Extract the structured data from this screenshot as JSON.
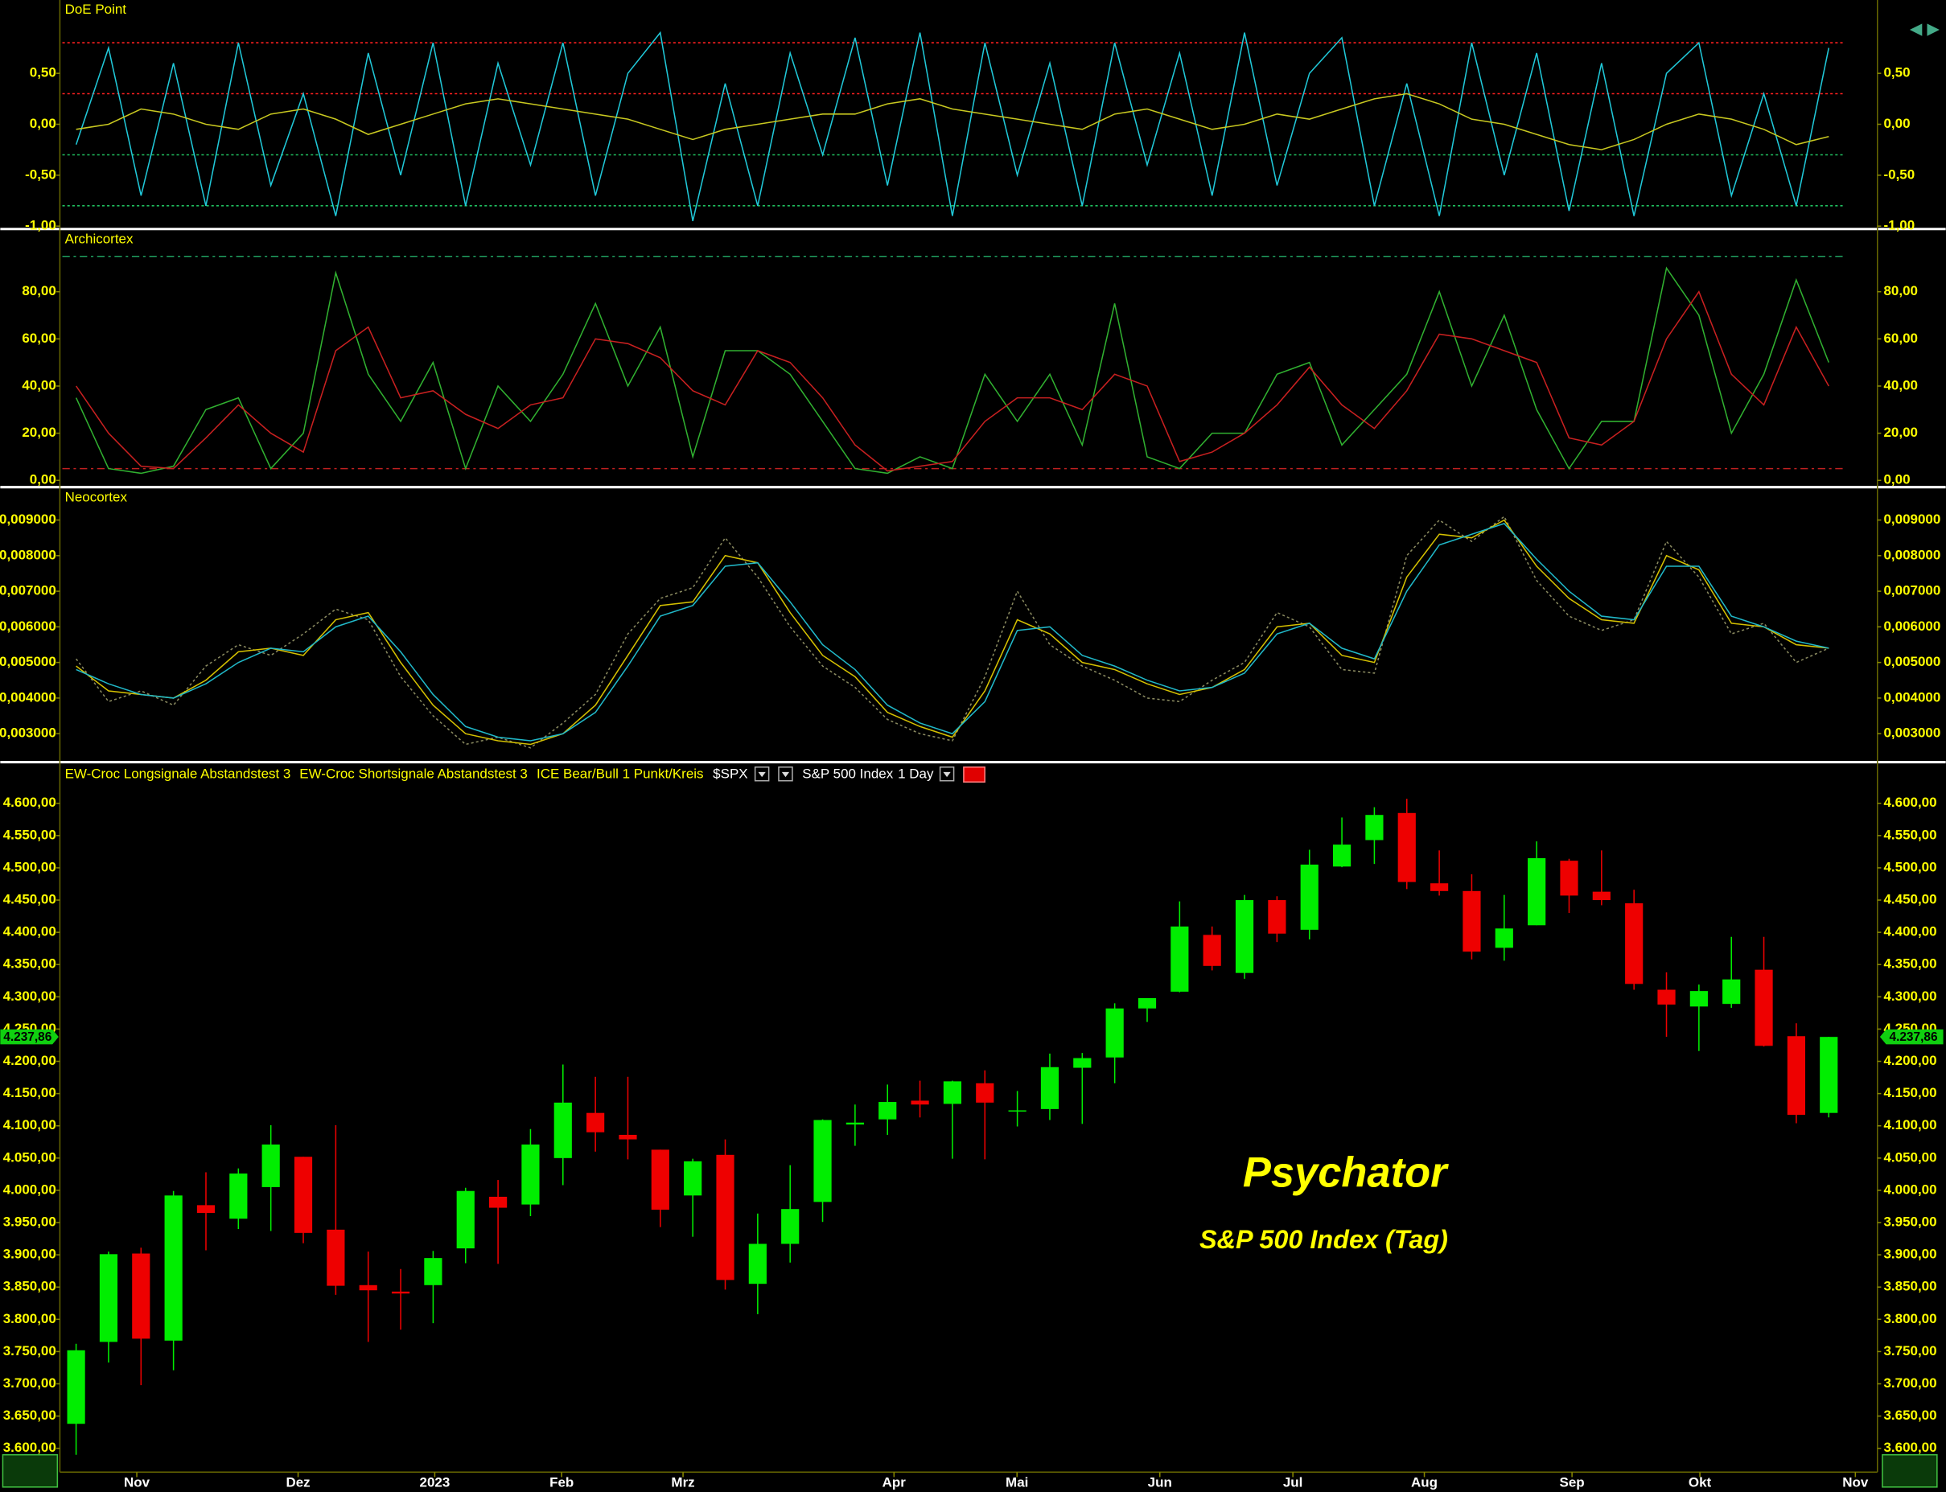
{
  "chart_data": [
    {
      "type": "line",
      "title": "DoE Point",
      "ylim": [
        -1.01,
        1.22
      ],
      "yticks": [
        {
          "value": -1,
          "label": "-1,00"
        },
        {
          "value": -0.5,
          "label": "-0,50"
        },
        {
          "value": 0,
          "label": "0,00"
        },
        {
          "value": 0.5,
          "label": "0,50"
        }
      ],
      "levels": [
        {
          "value": 0.8,
          "color": "#ff2020"
        },
        {
          "value": 0.3,
          "color": "#ff2020"
        },
        {
          "value": -0.3,
          "color": "#20c060"
        },
        {
          "value": -0.8,
          "color": "#20c060"
        }
      ],
      "series": [
        {
          "color": "#20c8d8",
          "values": [
            -0.2,
            0.75,
            -0.7,
            0.6,
            -0.8,
            0.8,
            -0.6,
            0.3,
            -0.9,
            0.7,
            -0.5,
            0.8,
            -0.8,
            0.6,
            -0.4,
            0.8,
            -0.7,
            0.5,
            0.9,
            -0.95,
            0.4,
            -0.8,
            0.7,
            -0.3,
            0.85,
            -0.6,
            0.9,
            -0.9,
            0.8,
            -0.5,
            0.6,
            -0.8,
            0.8,
            -0.4,
            0.7,
            -0.7,
            0.9,
            -0.6,
            0.5,
            0.85,
            -0.8,
            0.4,
            -0.9,
            0.8,
            -0.5,
            0.7,
            -0.85,
            0.6,
            -0.9,
            0.5,
            0.8,
            -0.7,
            0.3,
            -0.8,
            0.75
          ]
        },
        {
          "color": "#c8c820",
          "values": [
            -0.05,
            0.0,
            0.15,
            0.1,
            0.0,
            -0.05,
            0.1,
            0.15,
            0.05,
            -0.1,
            0.0,
            0.1,
            0.2,
            0.25,
            0.2,
            0.15,
            0.1,
            0.05,
            -0.05,
            -0.15,
            -0.05,
            0.0,
            0.05,
            0.1,
            0.1,
            0.2,
            0.25,
            0.15,
            0.1,
            0.05,
            0.0,
            -0.05,
            0.1,
            0.15,
            0.05,
            -0.05,
            0.0,
            0.1,
            0.05,
            0.15,
            0.25,
            0.3,
            0.2,
            0.05,
            0.0,
            -0.1,
            -0.2,
            -0.25,
            -0.15,
            0.0,
            0.1,
            0.05,
            -0.05,
            -0.2,
            -0.12
          ]
        }
      ]
    },
    {
      "type": "line",
      "title": "Archicortex",
      "ylim": [
        -2.1,
        105.8
      ],
      "yticks": [
        {
          "value": 0,
          "label": "0,00"
        },
        {
          "value": 20,
          "label": "20,00"
        },
        {
          "value": 40,
          "label": "40,00"
        },
        {
          "value": 60,
          "label": "60,00"
        },
        {
          "value": 80,
          "label": "80,00"
        }
      ],
      "levels": [
        {
          "value": 95,
          "color": "#20a060"
        },
        {
          "value": 5,
          "color": "#c02020"
        }
      ],
      "series": [
        {
          "color": "#30b030",
          "values": [
            35,
            5,
            3,
            6,
            30,
            35,
            5,
            20,
            88,
            45,
            25,
            50,
            5,
            40,
            25,
            45,
            75,
            40,
            65,
            10,
            55,
            55,
            45,
            25,
            5,
            3,
            10,
            5,
            45,
            25,
            45,
            15,
            75,
            10,
            5,
            20,
            20,
            45,
            50,
            15,
            30,
            45,
            80,
            40,
            70,
            30,
            5,
            25,
            25,
            90,
            70,
            20,
            45,
            85,
            50
          ]
        },
        {
          "color": "#c82020",
          "values": [
            40,
            20,
            6,
            5,
            18,
            32,
            20,
            12,
            55,
            65,
            35,
            38,
            28,
            22,
            32,
            35,
            60,
            58,
            52,
            38,
            32,
            55,
            50,
            35,
            15,
            4,
            6,
            8,
            25,
            35,
            35,
            30,
            45,
            40,
            8,
            12,
            20,
            32,
            48,
            32,
            22,
            38,
            62,
            60,
            55,
            50,
            18,
            15,
            25,
            60,
            80,
            45,
            32,
            65,
            40
          ]
        }
      ]
    },
    {
      "type": "line",
      "title": "Neocortex",
      "ylim": [
        0.00227,
        0.00987
      ],
      "yticks": [
        {
          "value": 0.003,
          "label": "0,003000"
        },
        {
          "value": 0.004,
          "label": "0,004000"
        },
        {
          "value": 0.005,
          "label": "0,005000"
        },
        {
          "value": 0.006,
          "label": "0,006000"
        },
        {
          "value": 0.007,
          "label": "0,007000"
        },
        {
          "value": 0.008,
          "label": "0,008000"
        },
        {
          "value": 0.009,
          "label": "0,009000"
        }
      ],
      "series": [
        {
          "color": "#8a8a60",
          "dash": true,
          "values": [
            0.0051,
            0.0039,
            0.0042,
            0.0038,
            0.0049,
            0.0055,
            0.0052,
            0.0058,
            0.0065,
            0.0062,
            0.0046,
            0.0035,
            0.0027,
            0.0029,
            0.0026,
            0.0033,
            0.0041,
            0.0058,
            0.0068,
            0.0071,
            0.0085,
            0.0074,
            0.006,
            0.0049,
            0.0043,
            0.0034,
            0.003,
            0.0028,
            0.0046,
            0.007,
            0.0055,
            0.0049,
            0.0045,
            0.004,
            0.0039,
            0.0045,
            0.005,
            0.0064,
            0.006,
            0.0048,
            0.0047,
            0.008,
            0.009,
            0.0084,
            0.0091,
            0.0073,
            0.0063,
            0.0059,
            0.0062,
            0.0084,
            0.0074,
            0.0058,
            0.0061,
            0.005,
            0.0054
          ]
        },
        {
          "color": "#d4c000",
          "values": [
            0.0049,
            0.0042,
            0.0041,
            0.004,
            0.0045,
            0.0053,
            0.0054,
            0.0052,
            0.0062,
            0.0064,
            0.005,
            0.0038,
            0.003,
            0.0028,
            0.0027,
            0.003,
            0.0038,
            0.0052,
            0.0066,
            0.0067,
            0.008,
            0.0078,
            0.0064,
            0.0052,
            0.0046,
            0.0036,
            0.0032,
            0.0029,
            0.0042,
            0.0062,
            0.0058,
            0.005,
            0.0048,
            0.0044,
            0.0041,
            0.0043,
            0.0048,
            0.006,
            0.0061,
            0.0052,
            0.005,
            0.0074,
            0.0086,
            0.0085,
            0.009,
            0.0077,
            0.0068,
            0.0062,
            0.0061,
            0.008,
            0.0076,
            0.0061,
            0.006,
            0.0055,
            0.0054
          ]
        },
        {
          "color": "#20b8c8",
          "values": [
            0.0048,
            0.0044,
            0.0041,
            0.004,
            0.0044,
            0.005,
            0.0054,
            0.0053,
            0.006,
            0.0063,
            0.0053,
            0.0041,
            0.0032,
            0.0029,
            0.0028,
            0.003,
            0.0036,
            0.0049,
            0.0063,
            0.0066,
            0.0077,
            0.0078,
            0.0067,
            0.0055,
            0.0048,
            0.0038,
            0.0033,
            0.003,
            0.0039,
            0.0059,
            0.006,
            0.0052,
            0.0049,
            0.0045,
            0.0042,
            0.0043,
            0.0047,
            0.0058,
            0.0061,
            0.0054,
            0.0051,
            0.007,
            0.0083,
            0.0086,
            0.0089,
            0.0079,
            0.007,
            0.0063,
            0.0062,
            0.0077,
            0.0077,
            0.0063,
            0.006,
            0.0056,
            0.0054
          ]
        }
      ]
    },
    {
      "type": "candlestick",
      "title": "S&P 500 Index",
      "symbol": "$SPX",
      "interval": "1 Day",
      "indicators": [
        "EW-Croc Longsignale Abstandstest 3",
        "EW-Croc Shortsignale Abstandstest 3",
        "ICE Bear/Bull 1 Punkt/Kreis"
      ],
      "annotations": [
        "Psychator",
        "S&P 500 Index (Tag)"
      ],
      "up_color": "#00ee00",
      "down_color": "#ee0000",
      "last_price": {
        "value": 4237.86,
        "label": "4.237,86"
      },
      "xlim": [
        -0.5,
        55.5
      ],
      "xticks": [
        {
          "value": 1.87,
          "label": "Nov"
        },
        {
          "value": 6.84,
          "label": "Dez"
        },
        {
          "value": 11.05,
          "label": "2023"
        },
        {
          "value": 14.96,
          "label": "Feb"
        },
        {
          "value": 18.7,
          "label": "Mrz"
        },
        {
          "value": 25.2,
          "label": "Apr"
        },
        {
          "value": 28.99,
          "label": "Mai"
        },
        {
          "value": 33.39,
          "label": "Jun"
        },
        {
          "value": 37.49,
          "label": "Jul"
        },
        {
          "value": 41.54,
          "label": "Aug"
        },
        {
          "value": 46.09,
          "label": "Sep"
        },
        {
          "value": 50.03,
          "label": "Okt"
        },
        {
          "value": 54.82,
          "label": "Nov"
        }
      ],
      "ylim": [
        3565,
        4660
      ],
      "yticks": [
        {
          "value": 3600,
          "label": "3.600,00"
        },
        {
          "value": 3650,
          "label": "3.650,00"
        },
        {
          "value": 3700,
          "label": "3.700,00"
        },
        {
          "value": 3750,
          "label": "3.750,00"
        },
        {
          "value": 3800,
          "label": "3.800,00"
        },
        {
          "value": 3850,
          "label": "3.850,00"
        },
        {
          "value": 3900,
          "label": "3.900,00"
        },
        {
          "value": 3950,
          "label": "3.950,00"
        },
        {
          "value": 4000,
          "label": "4.000,00"
        },
        {
          "value": 4050,
          "label": "4.050,00"
        },
        {
          "value": 4100,
          "label": "4.100,00"
        },
        {
          "value": 4150,
          "label": "4.150,00"
        },
        {
          "value": 4200,
          "label": "4.200,00"
        },
        {
          "value": 4250,
          "label": "4.250,00"
        },
        {
          "value": 4300,
          "label": "4.300,00"
        },
        {
          "value": 4350,
          "label": "4.350,00"
        },
        {
          "value": 4400,
          "label": "4.400,00"
        },
        {
          "value": 4450,
          "label": "4.450,00"
        },
        {
          "value": 4500,
          "label": "4.500,00"
        },
        {
          "value": 4550,
          "label": "4.550,00"
        },
        {
          "value": 4600,
          "label": "4.600,00"
        }
      ],
      "open": [
        3638,
        3765,
        3902,
        3767,
        3977,
        3956,
        4005,
        4052,
        3939,
        3853,
        3843,
        3853,
        3910,
        3990,
        3978,
        4050,
        4120,
        4086,
        4063,
        3992,
        4055,
        3855,
        3917,
        3982,
        4102,
        4110,
        4139,
        4134,
        4166,
        4124,
        4126,
        4190,
        4206,
        4282,
        4308,
        4396,
        4337,
        4450,
        4404,
        4502,
        4543,
        4585,
        4476,
        4464,
        4376,
        4411,
        4511,
        4463,
        4445,
        4311,
        4285,
        4289,
        4342,
        4239,
        4120
      ],
      "high": [
        3762,
        3905,
        3911,
        3999,
        4028,
        4034,
        4101,
        4052,
        4101,
        3905,
        3878,
        3906,
        4004,
        4016,
        4095,
        4195,
        4176,
        4176,
        4063,
        4049,
        4079,
        3964,
        4039,
        4110,
        4133,
        4164,
        4170,
        4170,
        4186,
        4154,
        4212,
        4213,
        4290,
        4298,
        4448,
        4409,
        4458,
        4456,
        4528,
        4578,
        4594,
        4607,
        4527,
        4490,
        4458,
        4541,
        4514,
        4527,
        4466,
        4338,
        4319,
        4393,
        4393,
        4259,
        4238
      ],
      "low": [
        3590,
        3733,
        3698,
        3721,
        3907,
        3940,
        3937,
        3918,
        3838,
        3765,
        3784,
        3794,
        3887,
        3886,
        3960,
        4008,
        4060,
        4048,
        3943,
        3928,
        3846,
        3808,
        3888,
        3951,
        4069,
        4086,
        4113,
        4049,
        4048,
        4099,
        4109,
        4103,
        4166,
        4261,
        4307,
        4341,
        4328,
        4385,
        4389,
        4501,
        4506,
        4467,
        4457,
        4358,
        4356,
        4411,
        4430,
        4442,
        4311,
        4238,
        4216,
        4283,
        4223,
        4104,
        4113
      ],
      "close": [
        3752,
        3901,
        3770,
        3992,
        3965,
        4026,
        4071,
        3934,
        3852,
        3845,
        3840,
        3895,
        3999,
        3973,
        4071,
        4136,
        4090,
        4079,
        3970,
        4045,
        3861,
        3917,
        3971,
        4109,
        4105,
        4137,
        4133,
        4169,
        4136,
        4124,
        4191,
        4205,
        4282,
        4298,
        4409,
        4348,
        4450,
        4398,
        4505,
        4536,
        4582,
        4478,
        4464,
        4370,
        4406,
        4515,
        4457,
        4450,
        4320,
        4288,
        4309,
        4327,
        4224,
        4117,
        4237.86
      ]
    }
  ]
}
